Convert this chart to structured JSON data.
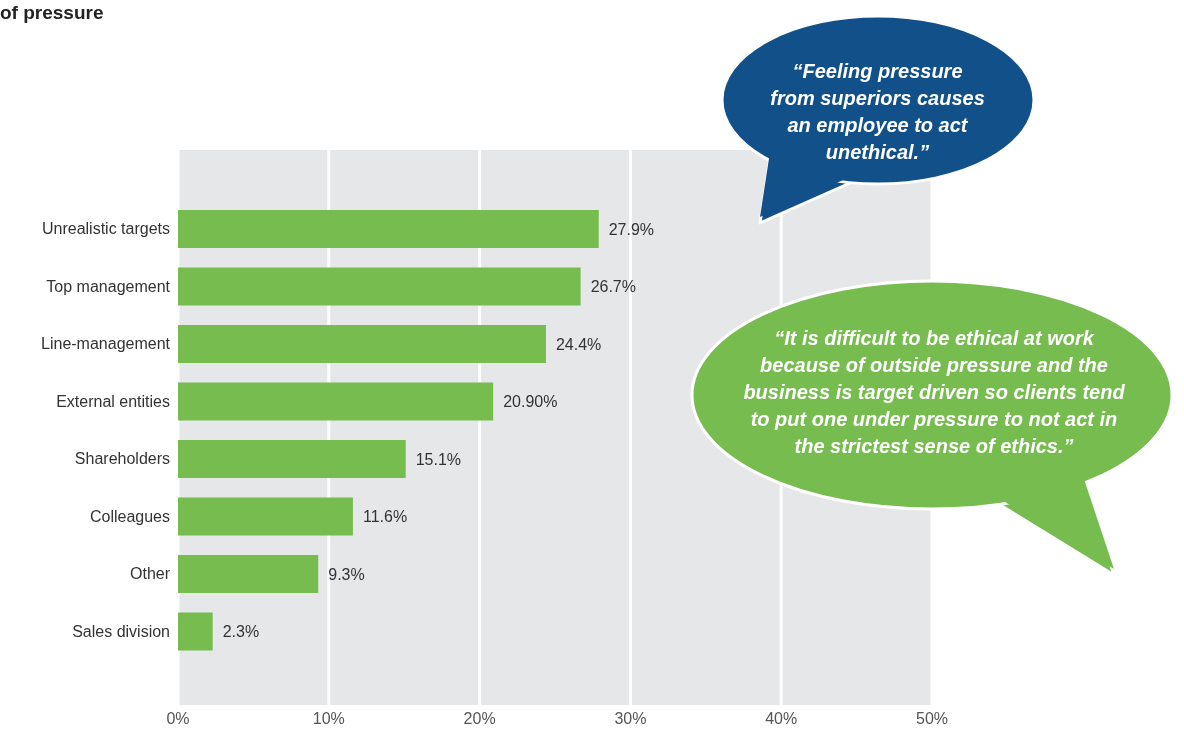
{
  "chart_data": {
    "type": "bar",
    "orientation": "horizontal",
    "title": "of pressure",
    "categories": [
      "Unrealistic targets",
      "Top management",
      "Line-management",
      "External entities",
      "Shareholders",
      "Colleagues",
      "Other",
      "Sales division"
    ],
    "values": [
      27.9,
      26.7,
      24.4,
      20.9,
      15.1,
      11.6,
      9.3,
      2.3
    ],
    "value_labels": [
      "27.9%",
      "26.7%",
      "24.4%",
      "20.90%",
      "15.1%",
      "11.6%",
      "9.3%",
      "2.3%"
    ],
    "color": "#77bc4f",
    "xlim": [
      0,
      50
    ],
    "xticks": [
      {
        "value": 0,
        "label": "0%"
      },
      {
        "value": 10,
        "label": "10%"
      },
      {
        "value": 20,
        "label": "20%"
      },
      {
        "value": 30,
        "label": "30%"
      },
      {
        "value": 40,
        "label": "40%"
      },
      {
        "value": 50,
        "label": "50%"
      }
    ],
    "grid": "x",
    "annotations": [
      "“Feeling pressure from superiors causes an employee to act unethical.”",
      "“It is difficult to be ethical at work because of outside pressure and the business is target driven so clients tend to put one under pressure to not act in the strictest sense of ethics.”"
    ]
  }
}
